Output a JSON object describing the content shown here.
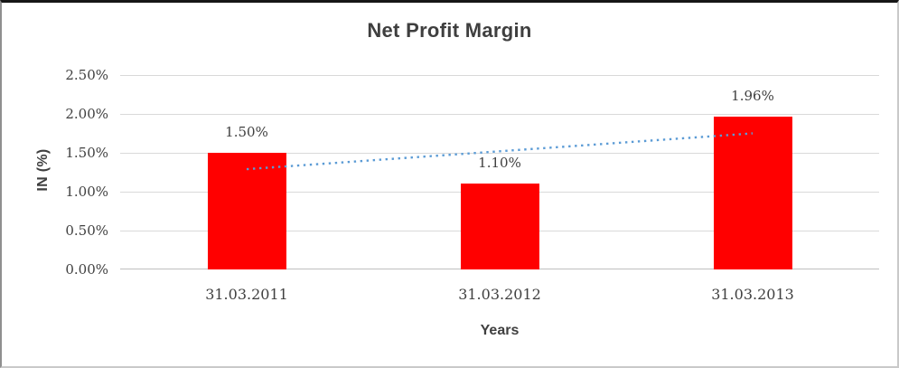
{
  "chart_data": {
    "type": "bar",
    "title": "Net Profit Margin",
    "categories": [
      "31.03.2011",
      "31.03.2012",
      "31.03.2013"
    ],
    "values": [
      1.5,
      1.1,
      1.96
    ],
    "data_labels": [
      "1.50%",
      "1.10%",
      "1.96%"
    ],
    "xlabel": "Years",
    "ylabel": "IN (%)",
    "y_ticks": [
      "2.50%",
      "2.00%",
      "1.50%",
      "1.00%",
      "0.50%",
      "0.00%"
    ],
    "ylim": [
      0,
      2.5
    ],
    "grid": true,
    "legend": false,
    "bar_color": "#ff0000",
    "gridline_color": "#d9d9d9",
    "axis_line_color": "#bfbfbf",
    "text_color": "#3f3f3f",
    "trendline": {
      "type": "linear",
      "style": "dotted",
      "color": "#5b9bd5",
      "start_value": 1.29,
      "end_value": 1.75
    }
  }
}
